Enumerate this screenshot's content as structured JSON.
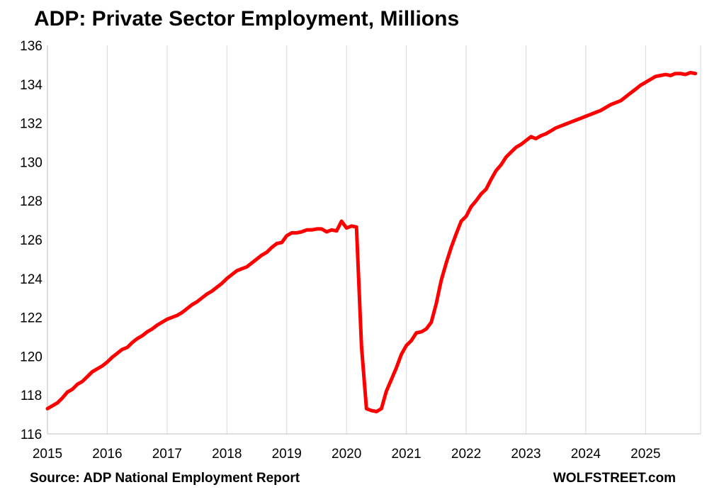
{
  "chart_data": {
    "type": "line",
    "title": "ADP: Private Sector Employment, Millions",
    "xlabel": "",
    "ylabel": "",
    "ylim": [
      116,
      136
    ],
    "yticks": [
      "116",
      "118",
      "120",
      "122",
      "124",
      "126",
      "128",
      "130",
      "132",
      "134",
      "136"
    ],
    "xlim": [
      2015,
      2025.92
    ],
    "xticks": [
      "2015",
      "2016",
      "2017",
      "2018",
      "2019",
      "2020",
      "2021",
      "2022",
      "2023",
      "2024",
      "2025"
    ],
    "grid": "vertical",
    "series": [
      {
        "color": "#ff0000",
        "x": [
          "2015-01",
          "2015-02",
          "2015-03",
          "2015-04",
          "2015-05",
          "2015-06",
          "2015-07",
          "2015-08",
          "2015-09",
          "2015-10",
          "2015-11",
          "2015-12",
          "2016-01",
          "2016-02",
          "2016-03",
          "2016-04",
          "2016-05",
          "2016-06",
          "2016-07",
          "2016-08",
          "2016-09",
          "2016-10",
          "2016-11",
          "2016-12",
          "2017-01",
          "2017-02",
          "2017-03",
          "2017-04",
          "2017-05",
          "2017-06",
          "2017-07",
          "2017-08",
          "2017-09",
          "2017-10",
          "2017-11",
          "2017-12",
          "2018-01",
          "2018-02",
          "2018-03",
          "2018-04",
          "2018-05",
          "2018-06",
          "2018-07",
          "2018-08",
          "2018-09",
          "2018-10",
          "2018-11",
          "2018-12",
          "2019-01",
          "2019-02",
          "2019-03",
          "2019-04",
          "2019-05",
          "2019-06",
          "2019-07",
          "2019-08",
          "2019-09",
          "2019-10",
          "2019-11",
          "2019-12",
          "2020-01",
          "2020-02",
          "2020-03",
          "2020-04",
          "2020-05",
          "2020-06",
          "2020-07",
          "2020-08",
          "2020-09",
          "2020-10",
          "2020-11",
          "2020-12",
          "2021-01",
          "2021-02",
          "2021-03",
          "2021-04",
          "2021-05",
          "2021-06",
          "2021-07",
          "2021-08",
          "2021-09",
          "2021-10",
          "2021-11",
          "2021-12",
          "2022-01",
          "2022-02",
          "2022-03",
          "2022-04",
          "2022-05",
          "2022-06",
          "2022-07",
          "2022-08",
          "2022-09",
          "2022-10",
          "2022-11",
          "2022-12",
          "2023-01",
          "2023-02",
          "2023-03",
          "2023-04",
          "2023-05",
          "2023-06",
          "2023-07",
          "2023-08",
          "2023-09",
          "2023-10",
          "2023-11",
          "2023-12",
          "2024-01",
          "2024-02",
          "2024-03",
          "2024-04",
          "2024-05",
          "2024-06",
          "2024-07",
          "2024-08",
          "2024-09",
          "2024-10",
          "2024-11",
          "2024-12",
          "2025-01",
          "2025-02",
          "2025-03",
          "2025-04",
          "2025-05",
          "2025-06",
          "2025-07",
          "2025-08",
          "2025-09",
          "2025-10",
          "2025-11"
        ],
        "values": [
          117.3,
          117.45,
          117.6,
          117.85,
          118.15,
          118.3,
          118.55,
          118.7,
          118.95,
          119.2,
          119.35,
          119.5,
          119.7,
          119.95,
          120.15,
          120.35,
          120.45,
          120.7,
          120.9,
          121.05,
          121.25,
          121.4,
          121.6,
          121.75,
          121.9,
          122.0,
          122.1,
          122.25,
          122.45,
          122.65,
          122.8,
          123.0,
          123.2,
          123.35,
          123.55,
          123.75,
          124.0,
          124.2,
          124.4,
          124.5,
          124.6,
          124.8,
          125.0,
          125.2,
          125.35,
          125.6,
          125.8,
          125.85,
          126.2,
          126.35,
          126.35,
          126.4,
          126.5,
          126.5,
          126.55,
          126.55,
          126.4,
          126.5,
          126.45,
          126.95,
          126.6,
          126.7,
          126.65,
          120.5,
          117.3,
          117.2,
          117.15,
          117.3,
          118.2,
          118.8,
          119.4,
          120.1,
          120.55,
          120.8,
          121.2,
          121.25,
          121.4,
          121.75,
          122.7,
          123.9,
          124.8,
          125.6,
          126.3,
          126.95,
          127.2,
          127.7,
          128.0,
          128.35,
          128.6,
          129.1,
          129.55,
          129.85,
          130.25,
          130.5,
          130.75,
          130.9,
          131.1,
          131.3,
          131.2,
          131.35,
          131.45,
          131.6,
          131.75,
          131.85,
          131.95,
          132.05,
          132.15,
          132.25,
          132.35,
          132.45,
          132.55,
          132.65,
          132.8,
          132.95,
          133.05,
          133.15,
          133.35,
          133.55,
          133.75,
          133.95,
          134.1,
          134.25,
          134.4,
          134.45,
          134.5,
          134.45,
          134.55,
          134.55,
          134.5,
          134.6,
          134.55
        ]
      }
    ]
  },
  "footer": {
    "source": "Source: ADP National Employment Report",
    "brand": "WOLFSTREET.com"
  }
}
